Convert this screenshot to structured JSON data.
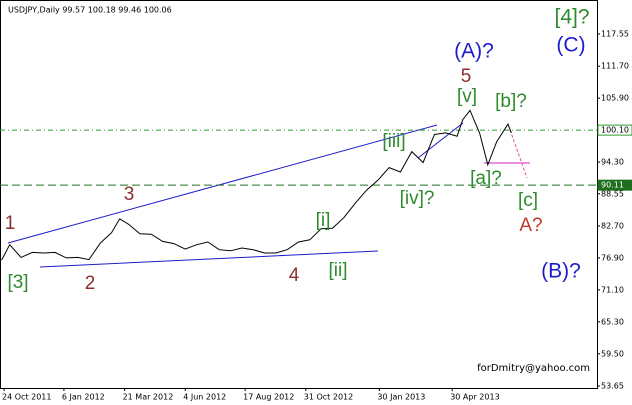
{
  "chart_data": {
    "type": "line",
    "title": "USDJPY,Daily  99.57 100.18 99.46 100.06",
    "watermark": "forDmitry@yahoo.com",
    "series": [
      {
        "name": "USDJPY",
        "color": "#000000",
        "x": [
          "2011-10-21",
          "2011-10-31",
          "2011-11-14",
          "2011-11-28",
          "2011-12-12",
          "2011-12-26",
          "2012-01-09",
          "2012-01-23",
          "2012-02-06",
          "2012-02-20",
          "2012-03-05",
          "2012-03-15",
          "2012-03-26",
          "2012-04-09",
          "2012-04-23",
          "2012-05-07",
          "2012-05-21",
          "2012-06-04",
          "2012-06-18",
          "2012-07-02",
          "2012-07-16",
          "2012-07-30",
          "2012-08-13",
          "2012-08-27",
          "2012-09-10",
          "2012-09-24",
          "2012-10-08",
          "2012-10-22",
          "2012-11-05",
          "2012-11-19",
          "2012-12-03",
          "2012-12-17",
          "2012-12-31",
          "2013-01-14",
          "2013-01-28",
          "2013-02-11",
          "2013-02-25",
          "2013-03-11",
          "2013-03-25",
          "2013-04-08",
          "2013-04-22",
          "2013-05-06",
          "2013-05-13",
          "2013-05-22",
          "2013-06-03",
          "2013-06-13",
          "2013-06-24",
          "2013-07-08",
          "2013-07-12"
        ],
        "values": [
          76.5,
          79.3,
          77.0,
          77.9,
          77.8,
          77.9,
          76.9,
          77.0,
          76.6,
          79.6,
          81.5,
          84.0,
          83.0,
          81.3,
          81.2,
          79.9,
          79.5,
          78.5,
          79.3,
          79.8,
          78.4,
          78.2,
          78.7,
          78.4,
          77.8,
          77.8,
          78.4,
          79.8,
          80.2,
          82.2,
          82.3,
          84.2,
          86.8,
          89.2,
          91.0,
          93.3,
          92.5,
          96.2,
          94.2,
          99.3,
          99.6,
          99.0,
          102.0,
          103.7,
          99.5,
          93.8,
          98.0,
          101.2,
          99.6
        ]
      }
    ],
    "xlim": [
      "2011-10-19",
      "2013-10-26"
    ],
    "xticks": [
      {
        "value": "2011-10-24",
        "label": "24 Oct 2011"
      },
      {
        "value": "2012-01-06",
        "label": "6 Jan 2012"
      },
      {
        "value": "2012-03-21",
        "label": "21 Mar 2012"
      },
      {
        "value": "2012-06-04",
        "label": "4 Jun 2012"
      },
      {
        "value": "2012-08-17",
        "label": "17 Aug 2012"
      },
      {
        "value": "2012-10-31",
        "label": "31 Oct 2012"
      },
      {
        "value": "2013-01-30",
        "label": "30 Jan 2013"
      },
      {
        "value": "2013-04-30",
        "label": "30 Apr 2013"
      }
    ],
    "ylim": [
      53.29,
      123.72
    ],
    "yticks": [
      117.55,
      {
        "value": 111.7,
        "label": "111.70"
      },
      {
        "value": 105.9,
        "label": "105.90"
      },
      {
        "value": 94.3,
        "label": "94.30"
      },
      88.55,
      {
        "value": 82.7,
        "label": "82.70"
      },
      {
        "value": 76.9,
        "label": "76.90"
      },
      {
        "value": 71.1,
        "label": "71.10"
      },
      {
        "value": 65.3,
        "label": "65.30"
      },
      {
        "value": 59.5,
        "label": "59.50"
      },
      53.65
    ],
    "levels": [
      {
        "value": 100.1,
        "label": "100.10",
        "color": "#2e9b2e"
      },
      {
        "value": 90.11,
        "label": "90.11",
        "color": "#1f6e1f"
      }
    ],
    "annotations": [
      {
        "text": "[4]?",
        "color": "#2e8b2e"
      },
      {
        "text": "(C)",
        "color": "#1c1ccc"
      },
      {
        "text": "(A)?",
        "color": "#1c1ccc"
      },
      {
        "text": "5",
        "color": "#8b2e2e"
      },
      {
        "text": "[v]",
        "color": "#2e8b2e"
      },
      {
        "text": "[b]?",
        "color": "#2e8b2e"
      },
      {
        "text": "[iii]",
        "color": "#2e8b2e"
      },
      {
        "text": "[a]?",
        "color": "#2e8b2e"
      },
      {
        "text": "[iv]?",
        "color": "#2e8b2e"
      },
      {
        "text": "[c]",
        "color": "#2e8b2e"
      },
      {
        "text": "A?",
        "color": "#c0392b"
      },
      {
        "text": "3",
        "color": "#8b2e2e"
      },
      {
        "text": "[i]",
        "color": "#2e8b2e"
      },
      {
        "text": "1",
        "color": "#8b2e2e"
      },
      {
        "text": "[3]",
        "color": "#2e8b2e"
      },
      {
        "text": "2",
        "color": "#8b2e2e"
      },
      {
        "text": "4",
        "color": "#8b2e2e"
      },
      {
        "text": "[ii]",
        "color": "#2e8b2e"
      },
      {
        "text": "(B)?",
        "color": "#1c1ccc"
      }
    ]
  }
}
